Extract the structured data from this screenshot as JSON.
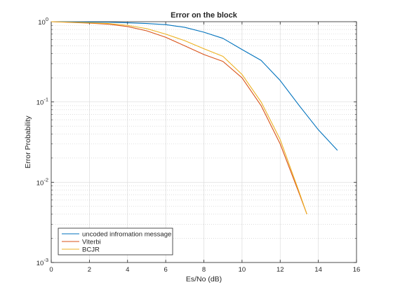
{
  "chart_data": {
    "type": "line",
    "title": "Error on the block",
    "xlabel": "Es/No (dB)",
    "ylabel": "Error Probability",
    "xlim": [
      0,
      16
    ],
    "ylim": [
      0.001,
      1
    ],
    "yscale": "log",
    "grid": true,
    "minor_grid": true,
    "legend_position": "bottom-left",
    "xticks": [
      "0",
      "2",
      "4",
      "6",
      "8",
      "10",
      "12",
      "14",
      "16"
    ],
    "yticks": [
      {
        "value": 1,
        "base": "10",
        "exp": "0"
      },
      {
        "value": 0.1,
        "base": "10",
        "exp": "-1"
      },
      {
        "value": 0.01,
        "base": "10",
        "exp": "-2"
      },
      {
        "value": 0.001,
        "base": "10",
        "exp": "-3"
      }
    ],
    "series": [
      {
        "name": "uncoded infromation message",
        "color": "#0072BD",
        "x": [
          0,
          1,
          2,
          3,
          4,
          5,
          6,
          7,
          8,
          9,
          10,
          11,
          12,
          13,
          14,
          15
        ],
        "y": [
          1.0,
          0.995,
          0.99,
          0.985,
          0.97,
          0.95,
          0.92,
          0.85,
          0.74,
          0.62,
          0.45,
          0.33,
          0.185,
          0.09,
          0.045,
          0.025
        ]
      },
      {
        "name": "Viterbi",
        "color": "#D95319",
        "x": [
          0,
          1,
          2,
          3,
          4,
          5,
          6,
          7,
          8,
          9,
          10,
          11,
          12,
          13,
          13.4
        ],
        "y": [
          1.0,
          0.98,
          0.96,
          0.93,
          0.87,
          0.77,
          0.64,
          0.5,
          0.39,
          0.32,
          0.2,
          0.09,
          0.03,
          0.0072,
          0.004
        ]
      },
      {
        "name": "BCJR",
        "color": "#EDB120",
        "x": [
          0,
          1,
          2,
          3,
          4,
          5,
          6,
          7,
          8,
          9,
          10,
          11,
          12,
          13,
          13.4
        ],
        "y": [
          1.0,
          0.985,
          0.97,
          0.95,
          0.9,
          0.82,
          0.7,
          0.58,
          0.46,
          0.37,
          0.22,
          0.1,
          0.034,
          0.0075,
          0.004
        ]
      }
    ]
  }
}
